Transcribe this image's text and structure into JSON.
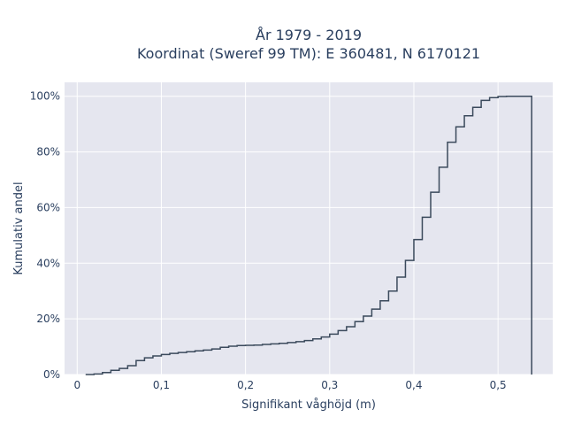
{
  "chart_data": {
    "type": "line",
    "step": true,
    "title_lines": [
      "År 1979 - 2019",
      "Koordinat (Sweref 99 TM): E 360481, N 6170121"
    ],
    "xlabel": "Signifikant våghöjd (m)",
    "ylabel": "Kumulativ andel",
    "xlim": [
      -0.015,
      0.565
    ],
    "ylim": [
      0,
      1.05
    ],
    "xticks": [
      0,
      0.1,
      0.2,
      0.3,
      0.4,
      0.5
    ],
    "xtick_labels": [
      "0",
      "0,1",
      "0,2",
      "0,3",
      "0,4",
      "0,5"
    ],
    "yticks": [
      0,
      0.2,
      0.4,
      0.6,
      0.8,
      1.0
    ],
    "ytick_labels": [
      "0%",
      "20%",
      "40%",
      "60%",
      "80%",
      "100%"
    ],
    "grid": true,
    "line_color": "#3b4a5c",
    "plot_bg": "#e5e6ef",
    "series": [
      {
        "x": [
          0.01,
          0.02,
          0.03,
          0.04,
          0.05,
          0.06,
          0.07,
          0.08,
          0.09,
          0.1,
          0.11,
          0.12,
          0.13,
          0.14,
          0.15,
          0.16,
          0.17,
          0.18,
          0.19,
          0.2,
          0.21,
          0.22,
          0.23,
          0.24,
          0.25,
          0.26,
          0.27,
          0.28,
          0.29,
          0.3,
          0.31,
          0.32,
          0.33,
          0.34,
          0.35,
          0.36,
          0.37,
          0.38,
          0.39,
          0.4,
          0.41,
          0.42,
          0.43,
          0.44,
          0.45,
          0.46,
          0.47,
          0.48,
          0.49,
          0.5,
          0.51,
          0.52,
          0.53,
          0.54
        ],
        "y": [
          0.0,
          0.002,
          0.007,
          0.015,
          0.022,
          0.032,
          0.05,
          0.06,
          0.067,
          0.072,
          0.076,
          0.079,
          0.082,
          0.085,
          0.088,
          0.092,
          0.098,
          0.102,
          0.104,
          0.105,
          0.106,
          0.108,
          0.11,
          0.112,
          0.115,
          0.118,
          0.122,
          0.128,
          0.135,
          0.145,
          0.158,
          0.172,
          0.19,
          0.21,
          0.235,
          0.265,
          0.3,
          0.35,
          0.41,
          0.485,
          0.565,
          0.655,
          0.745,
          0.835,
          0.89,
          0.93,
          0.96,
          0.985,
          0.995,
          0.999,
          1.0,
          1.0,
          1.0,
          0.0
        ]
      }
    ]
  }
}
